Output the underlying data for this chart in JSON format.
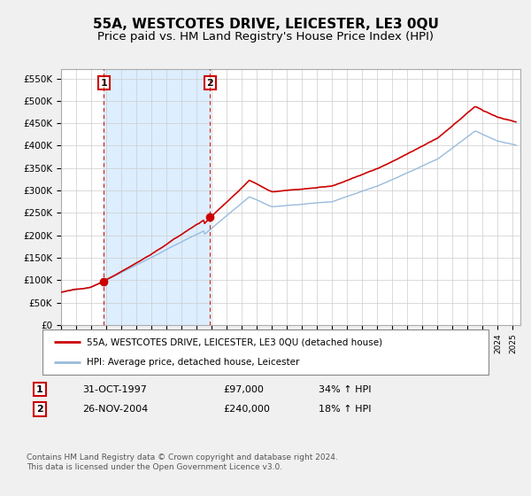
{
  "title": "55A, WESTCOTES DRIVE, LEICESTER, LE3 0QU",
  "subtitle": "Price paid vs. HM Land Registry's House Price Index (HPI)",
  "ylabel_ticks": [
    "£0",
    "£50K",
    "£100K",
    "£150K",
    "£200K",
    "£250K",
    "£300K",
    "£350K",
    "£400K",
    "£450K",
    "£500K",
    "£550K"
  ],
  "ytick_values": [
    0,
    50000,
    100000,
    150000,
    200000,
    250000,
    300000,
    350000,
    400000,
    450000,
    500000,
    550000
  ],
  "ylim": [
    0,
    570000
  ],
  "sale1_date": 1997.83,
  "sale1_price": 97000,
  "sale2_date": 2004.9,
  "sale2_price": 240000,
  "legend_line1": "55A, WESTCOTES DRIVE, LEICESTER, LE3 0QU (detached house)",
  "legend_line2": "HPI: Average price, detached house, Leicester",
  "footer": "Contains HM Land Registry data © Crown copyright and database right 2024.\nThis data is licensed under the Open Government Licence v3.0.",
  "red_line_color": "#cc0000",
  "blue_line_color": "#99bbdd",
  "shade_color": "#ddeeff",
  "background_color": "#f0f0f0",
  "plot_bg_color": "#ffffff",
  "grid_color": "#cccccc",
  "title_fontsize": 11,
  "subtitle_fontsize": 9.5
}
